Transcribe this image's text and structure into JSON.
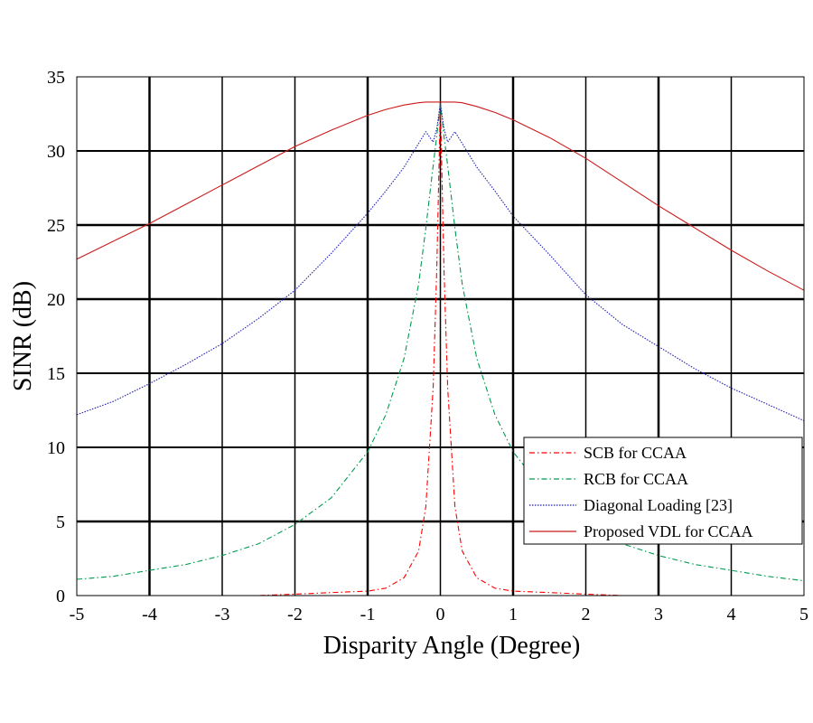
{
  "chart_data": {
    "type": "line",
    "title": "",
    "xlabel": "Disparity Angle (Degree)",
    "ylabel": "SINR (dB)",
    "xlim": [
      -5,
      5
    ],
    "ylim": [
      0,
      35
    ],
    "xticks": [
      -5,
      -4,
      -3,
      -2,
      -1,
      0,
      1,
      2,
      3,
      4,
      5
    ],
    "yticks": [
      0,
      5,
      10,
      15,
      20,
      25,
      30,
      35
    ],
    "xtick_labels": [
      "-5",
      "-4",
      "-3",
      "-2",
      "-1",
      "0",
      "1",
      "2",
      "3",
      "4",
      "5"
    ],
    "ytick_labels": [
      "0",
      "5",
      "10",
      "15",
      "20",
      "25",
      "30",
      "35"
    ],
    "grid": true,
    "legend_position": "lower-right",
    "x": [
      -5,
      -4.5,
      -4,
      -3.5,
      -3,
      -2.5,
      -2,
      -1.5,
      -1,
      -0.75,
      -0.5,
      -0.3,
      -0.2,
      -0.1,
      -0.05,
      0,
      0.05,
      0.1,
      0.2,
      0.3,
      0.5,
      0.75,
      1,
      1.5,
      2,
      2.5,
      3,
      3.5,
      4,
      4.5,
      5
    ],
    "series": [
      {
        "name": "SCB for CCAA",
        "color": "#ff0000",
        "style": "dashdot",
        "values": [
          0.0,
          0.0,
          0.0,
          0.0,
          0.0,
          0.0,
          0.1,
          0.2,
          0.3,
          0.5,
          1.2,
          3.0,
          6.0,
          14.0,
          22.0,
          33.2,
          22.0,
          14.0,
          6.0,
          3.0,
          1.2,
          0.5,
          0.3,
          0.2,
          0.1,
          0.0,
          0.0,
          0.0,
          0.0,
          0.0,
          0.0
        ]
      },
      {
        "name": "RCB for CCAA",
        "color": "#009a4d",
        "style": "dashdot",
        "values": [
          1.1,
          1.3,
          1.7,
          2.1,
          2.7,
          3.5,
          4.8,
          6.6,
          9.7,
          12.2,
          16.0,
          21.0,
          24.8,
          29.0,
          31.0,
          33.2,
          31.0,
          29.0,
          24.8,
          21.0,
          16.0,
          12.2,
          9.7,
          6.6,
          4.8,
          3.5,
          2.7,
          2.1,
          1.7,
          1.3,
          1.0
        ]
      },
      {
        "name": "Diagonal Loading [23]",
        "color": "#1e1eb4",
        "style": "dotted",
        "values": [
          12.2,
          13.1,
          14.3,
          15.6,
          17.0,
          18.7,
          20.6,
          23.1,
          25.8,
          27.3,
          28.9,
          30.5,
          31.3,
          30.6,
          31.5,
          33.2,
          31.5,
          30.6,
          31.3,
          30.5,
          28.9,
          27.3,
          25.6,
          23.0,
          20.3,
          18.3,
          16.8,
          15.3,
          14.0,
          12.9,
          11.8
        ]
      },
      {
        "name": "Proposed VDL for CCAA",
        "color": "#cc1a1a",
        "style": "solid",
        "values": [
          22.7,
          23.9,
          25.1,
          26.4,
          27.7,
          29.0,
          30.3,
          31.4,
          32.4,
          32.8,
          33.1,
          33.25,
          33.3,
          33.3,
          33.3,
          33.3,
          33.3,
          33.3,
          33.3,
          33.25,
          33.0,
          32.6,
          32.1,
          30.9,
          29.5,
          27.9,
          26.3,
          24.8,
          23.3,
          21.9,
          20.6
        ]
      }
    ]
  }
}
